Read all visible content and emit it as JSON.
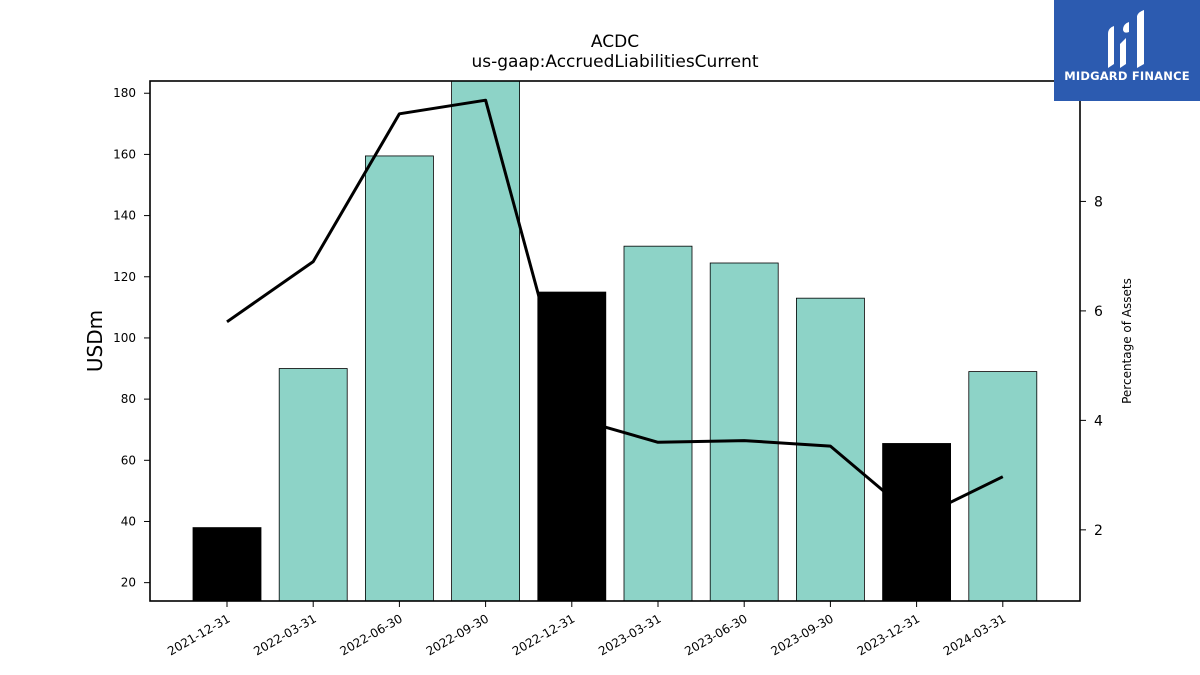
{
  "header": {
    "title": "ACDC",
    "subtitle": "us-gaap:AccruedLiabilitiesCurrent"
  },
  "logo": {
    "text": "MIDGARD FINANCE",
    "background": "#2c5bb0"
  },
  "colors": {
    "bar_default": "#8dd3c7",
    "bar_highlight": "#000000",
    "line": "#000000"
  },
  "chart_data": {
    "type": "bar",
    "title": "ACDC",
    "subtitle": "us-gaap:AccruedLiabilitiesCurrent",
    "categories": [
      "2021-12-31",
      "2022-03-31",
      "2022-06-30",
      "2022-09-30",
      "2022-12-31",
      "2023-03-31",
      "2023-06-30",
      "2023-09-30",
      "2023-12-31",
      "2024-03-31"
    ],
    "series": [
      {
        "type": "bar",
        "axis": "left",
        "values": [
          38,
          90,
          159.5,
          184,
          115,
          130,
          124.5,
          113,
          65.5,
          89
        ],
        "highlight": [
          true,
          false,
          false,
          false,
          true,
          false,
          false,
          false,
          true,
          false
        ]
      },
      {
        "type": "line",
        "axis": "right",
        "values": [
          5.8,
          6.9,
          9.6,
          9.85,
          4.05,
          3.6,
          3.63,
          3.53,
          2.2,
          2.97
        ]
      }
    ],
    "ylabel": "USDm",
    "y2label": "Percentage of Assets",
    "ylim": [
      14,
      184
    ],
    "y2lim": [
      0.7,
      10.2
    ],
    "yticks": [
      20,
      40,
      60,
      80,
      100,
      120,
      140,
      160,
      180
    ],
    "y2ticks": [
      2,
      4,
      6,
      8
    ]
  }
}
